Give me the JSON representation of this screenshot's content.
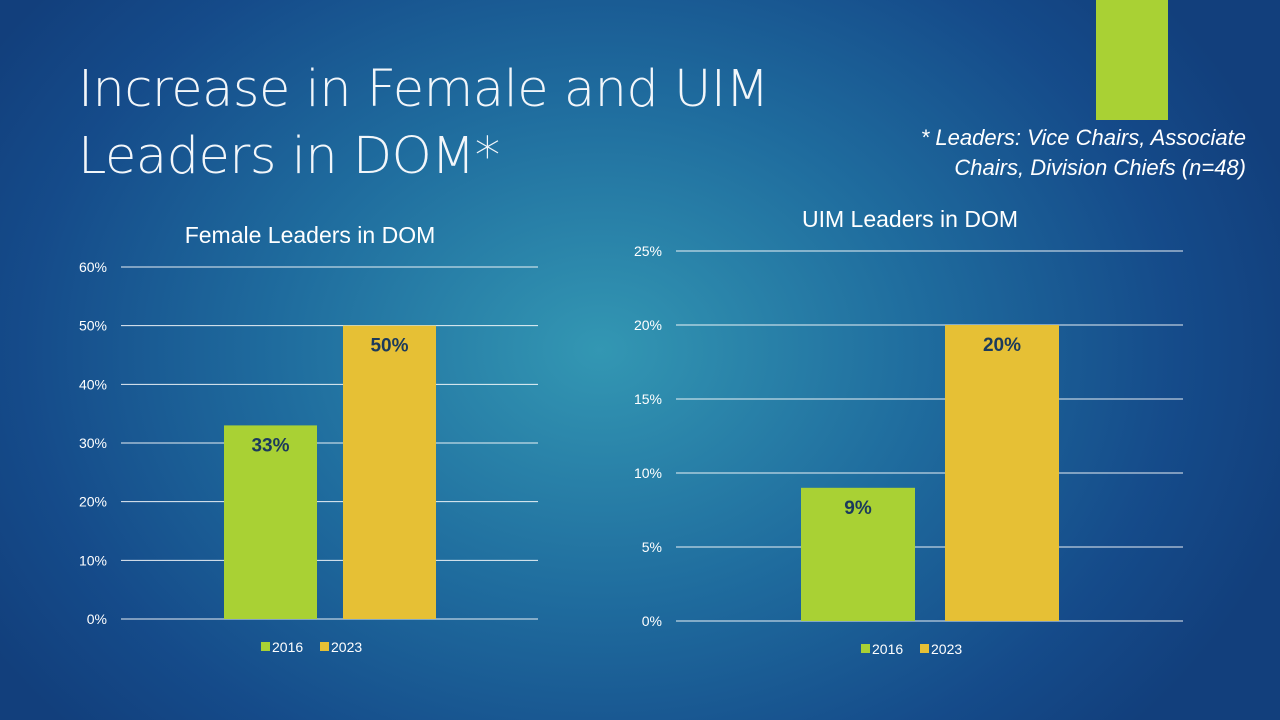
{
  "slide": {
    "title_line1": "Increase in Female and UIM",
    "title_line2": "Leaders in DOM*",
    "footnote_line1": "* Leaders: Vice Chairs, Associate",
    "footnote_line2": "Chairs, Division Chiefs (n=48)",
    "accent_color": "#a9d134"
  },
  "chart_data": [
    {
      "type": "bar",
      "title": "Female Leaders in DOM",
      "xlabel": "",
      "ylabel": "",
      "ylim": [
        0,
        60
      ],
      "ytick_values": [
        0,
        10,
        20,
        30,
        40,
        50,
        60
      ],
      "ytick_labels": [
        "0%",
        "10%",
        "20%",
        "30%",
        "40%",
        "50%",
        "60%"
      ],
      "series": [
        {
          "name": "2016",
          "values": [
            33
          ],
          "data_label": "33%",
          "color": "#a9d134"
        },
        {
          "name": "2023",
          "values": [
            50
          ],
          "data_label": "50%",
          "color": "#e6c035"
        }
      ],
      "grid": true,
      "legend_position": "bottom"
    },
    {
      "type": "bar",
      "title": "UIM Leaders in DOM",
      "xlabel": "",
      "ylabel": "",
      "ylim": [
        0,
        25
      ],
      "ytick_values": [
        0,
        5,
        10,
        15,
        20,
        25
      ],
      "ytick_labels": [
        "0%",
        "5%",
        "10%",
        "15%",
        "20%",
        "25%"
      ],
      "series": [
        {
          "name": "2016",
          "values": [
            9
          ],
          "data_label": "9%",
          "color": "#a9d134"
        },
        {
          "name": "2023",
          "values": [
            20
          ],
          "data_label": "20%",
          "color": "#e6c035"
        }
      ],
      "grid": true,
      "legend_position": "bottom"
    }
  ]
}
